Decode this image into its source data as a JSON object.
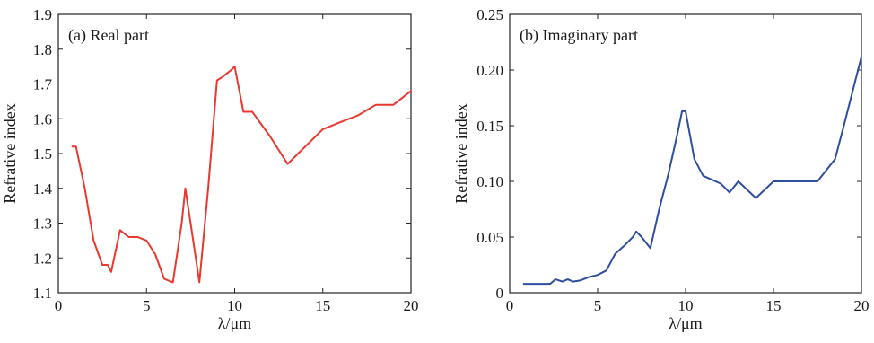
{
  "chart_data": [
    {
      "type": "line",
      "panel": "left",
      "title": "(a) Real part",
      "xlabel": "λ/μm",
      "ylabel": "Refrative index",
      "xlim": [
        0,
        20
      ],
      "ylim": [
        1.1,
        1.9
      ],
      "xticks": [
        0,
        5,
        10,
        15,
        20
      ],
      "yticks": [
        1.1,
        1.2,
        1.3,
        1.4,
        1.5,
        1.6,
        1.7,
        1.8,
        1.9
      ],
      "xtick_labels": [
        "0",
        "5",
        "10",
        "15",
        "20"
      ],
      "ytick_labels": [
        "1.1",
        "1.2",
        "1.3",
        "1.4",
        "1.5",
        "1.6",
        "1.7",
        "1.8",
        "1.9"
      ],
      "color": "#e8382f",
      "grid": false,
      "series": [
        {
          "x": [
            0.8,
            1.0,
            1.5,
            2.0,
            2.5,
            2.8,
            3.0,
            3.5,
            4.0,
            4.5,
            5.0,
            5.5,
            6.0,
            6.5,
            7.0,
            7.2,
            7.5,
            8.0,
            8.5,
            9.0,
            9.3,
            9.8,
            10.0,
            10.5,
            11.0,
            12.0,
            13.0,
            14.0,
            15.0,
            16.0,
            17.0,
            18.0,
            19.0,
            20.0
          ],
          "y": [
            1.52,
            1.52,
            1.4,
            1.25,
            1.18,
            1.18,
            1.16,
            1.28,
            1.26,
            1.26,
            1.25,
            1.21,
            1.14,
            1.13,
            1.3,
            1.4,
            1.3,
            1.13,
            1.4,
            1.71,
            1.72,
            1.74,
            1.75,
            1.62,
            1.62,
            1.55,
            1.47,
            1.52,
            1.57,
            1.59,
            1.61,
            1.64,
            1.64,
            1.68
          ]
        }
      ]
    },
    {
      "type": "line",
      "panel": "right",
      "title": "(b) Imaginary part",
      "xlabel": "λ/μm",
      "ylabel": "Refrative index",
      "xlim": [
        0,
        20
      ],
      "ylim": [
        0,
        0.25
      ],
      "xticks": [
        0,
        5,
        10,
        15,
        20
      ],
      "yticks": [
        0,
        0.05,
        0.1,
        0.15,
        0.2,
        0.25
      ],
      "xtick_labels": [
        "0",
        "5",
        "10",
        "15",
        "20"
      ],
      "ytick_labels": [
        "0",
        "0.05",
        "0.10",
        "0.15",
        "0.20",
        "0.25"
      ],
      "color": "#2e4e9e",
      "grid": false,
      "series": [
        {
          "x": [
            0.8,
            1.5,
            2.0,
            2.3,
            2.6,
            3.0,
            3.3,
            3.6,
            4.0,
            4.5,
            5.0,
            5.5,
            6.0,
            6.5,
            7.0,
            7.2,
            7.5,
            8.0,
            8.5,
            9.0,
            9.5,
            9.8,
            10.0,
            10.5,
            11.0,
            12.0,
            12.5,
            13.0,
            14.0,
            15.0,
            16.0,
            17.0,
            17.5,
            18.0,
            18.5,
            19.0,
            20.0
          ],
          "y": [
            0.008,
            0.008,
            0.008,
            0.008,
            0.012,
            0.01,
            0.012,
            0.01,
            0.011,
            0.014,
            0.016,
            0.02,
            0.035,
            0.042,
            0.05,
            0.055,
            0.05,
            0.04,
            0.075,
            0.105,
            0.14,
            0.163,
            0.163,
            0.12,
            0.105,
            0.098,
            0.09,
            0.1,
            0.085,
            0.1,
            0.1,
            0.1,
            0.1,
            0.11,
            0.12,
            0.15,
            0.212
          ]
        }
      ]
    }
  ]
}
